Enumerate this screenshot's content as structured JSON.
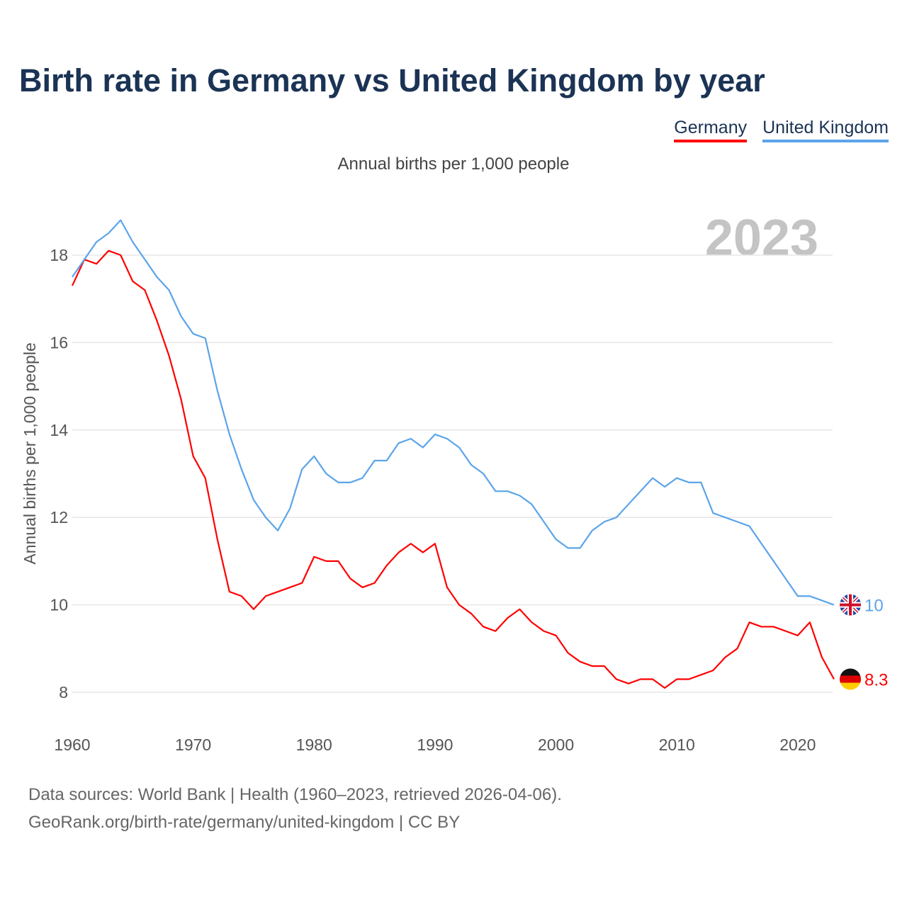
{
  "title": "Birth rate in Germany vs United Kingdom by year",
  "legend": [
    "Germany",
    "United Kingdom"
  ],
  "subtitle": "Annual births per 1,000 people",
  "year_label": "2023",
  "sources": [
    "Data sources: World Bank | Health (1960–2023, retrieved 2026-04-06).",
    "GeoRank.org/birth-rate/germany/united-kingdom | CC BY"
  ],
  "chart_data": {
    "type": "line",
    "title": "Birth rate in Germany vs United Kingdom by year",
    "xlabel": "",
    "ylabel": "Annual births per 1,000 people",
    "xlim": [
      1960,
      2023
    ],
    "ylim": [
      7.3,
      19
    ],
    "x_ticks": [
      1960,
      1970,
      1980,
      1990,
      2000,
      2010,
      2020
    ],
    "y_ticks": [
      8,
      10,
      12,
      14,
      16,
      18
    ],
    "grid": true,
    "legend_position": "top-right",
    "x_start": 1960,
    "series": [
      {
        "name": "Germany",
        "color": "#ff0000",
        "end_label": "8.3",
        "values": [
          17.3,
          17.9,
          17.8,
          18.1,
          18.0,
          17.4,
          17.2,
          16.5,
          15.7,
          14.7,
          13.4,
          12.9,
          11.5,
          10.3,
          10.2,
          9.9,
          10.2,
          10.3,
          10.4,
          10.5,
          11.1,
          11.0,
          11.0,
          10.6,
          10.4,
          10.5,
          10.9,
          11.2,
          11.4,
          11.2,
          11.4,
          10.4,
          10.0,
          9.8,
          9.5,
          9.4,
          9.7,
          9.9,
          9.6,
          9.4,
          9.3,
          8.9,
          8.7,
          8.6,
          8.6,
          8.3,
          8.2,
          8.3,
          8.3,
          8.1,
          8.3,
          8.3,
          8.4,
          8.5,
          8.8,
          9.0,
          9.6,
          9.5,
          9.5,
          9.4,
          9.3,
          9.6,
          8.8,
          8.3
        ]
      },
      {
        "name": "United Kingdom",
        "color": "#5ba4ea",
        "end_label": "10",
        "values": [
          17.5,
          17.9,
          18.3,
          18.5,
          18.8,
          18.3,
          17.9,
          17.5,
          17.2,
          16.6,
          16.2,
          16.1,
          14.9,
          13.9,
          13.1,
          12.4,
          12.0,
          11.7,
          12.2,
          13.1,
          13.4,
          13.0,
          12.8,
          12.8,
          12.9,
          13.3,
          13.3,
          13.7,
          13.8,
          13.6,
          13.9,
          13.8,
          13.6,
          13.2,
          13.0,
          12.6,
          12.6,
          12.5,
          12.3,
          11.9,
          11.5,
          11.3,
          11.3,
          11.7,
          11.9,
          12.0,
          12.3,
          12.6,
          12.9,
          12.7,
          12.9,
          12.8,
          12.8,
          12.1,
          12.0,
          11.9,
          11.8,
          11.4,
          11.0,
          10.6,
          10.2,
          10.2,
          10.1,
          10.0
        ]
      }
    ]
  }
}
